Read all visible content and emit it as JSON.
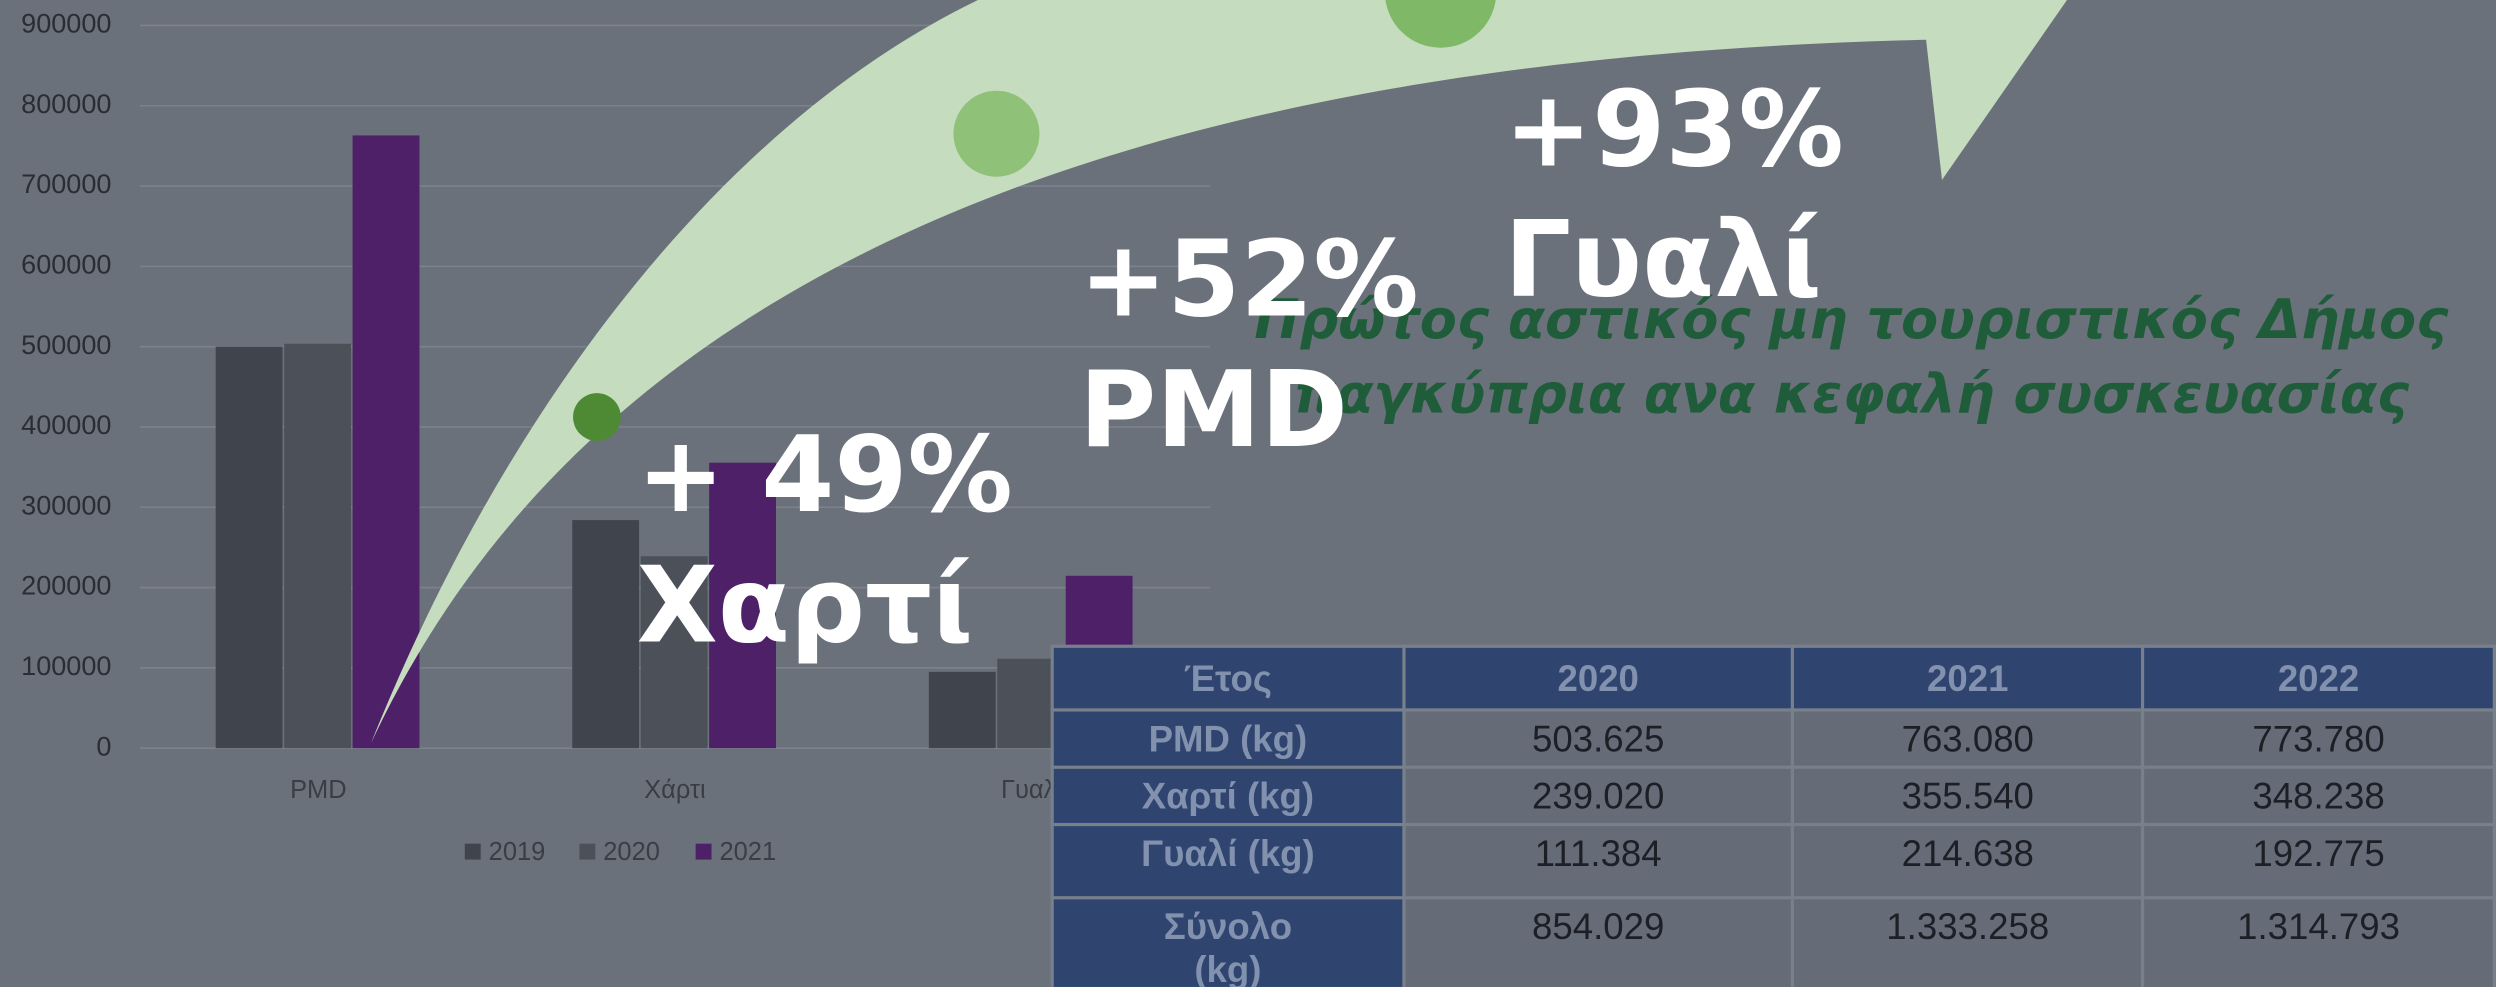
{
  "chart_data": {
    "type": "bar",
    "categories": [
      "PMD",
      "Χάρτι",
      "Γυαλί"
    ],
    "series": [
      {
        "name": "2019",
        "color": "#40444c",
        "values": [
          500000,
          284000,
          95000
        ]
      },
      {
        "name": "2020",
        "color": "#4c5159",
        "values": [
          503625,
          239020,
          111384
        ]
      },
      {
        "name": "2021",
        "color": "#4e2068",
        "values": [
          763080,
          355540,
          214638
        ]
      }
    ],
    "ylim": [
      0,
      900000
    ],
    "yticks": [
      0,
      100000,
      200000,
      300000,
      400000,
      500000,
      600000,
      700000,
      800000,
      900000
    ],
    "grid": true,
    "legend": "bottom"
  },
  "annotations": [
    {
      "change": "+ 49%",
      "label": "Χαρτί"
    },
    {
      "change": "+52%",
      "label": "PMD"
    },
    {
      "change": "+93%",
      "label": "Γυαλί"
    }
  ],
  "headline": [
    "Πρώτος αστικός μη τουριστικός Δήμος",
    "παγκύπρια ανα κεφαλή συσκευασίας"
  ],
  "table": {
    "header": [
      "Έτος",
      "2020",
      "2021",
      "2022"
    ],
    "rows": [
      [
        "PMD (kg)",
        "503.625",
        "763.080",
        "773.780"
      ],
      [
        "Χαρτί (kg)",
        "239.020",
        "355.540",
        "348.238"
      ],
      [
        "Γυαλί (kg)",
        "111.384",
        "214.638",
        "192.775"
      ],
      [
        "Σύνολο (kg)",
        "854.029",
        "1.333.258",
        "1.314.793"
      ]
    ]
  }
}
